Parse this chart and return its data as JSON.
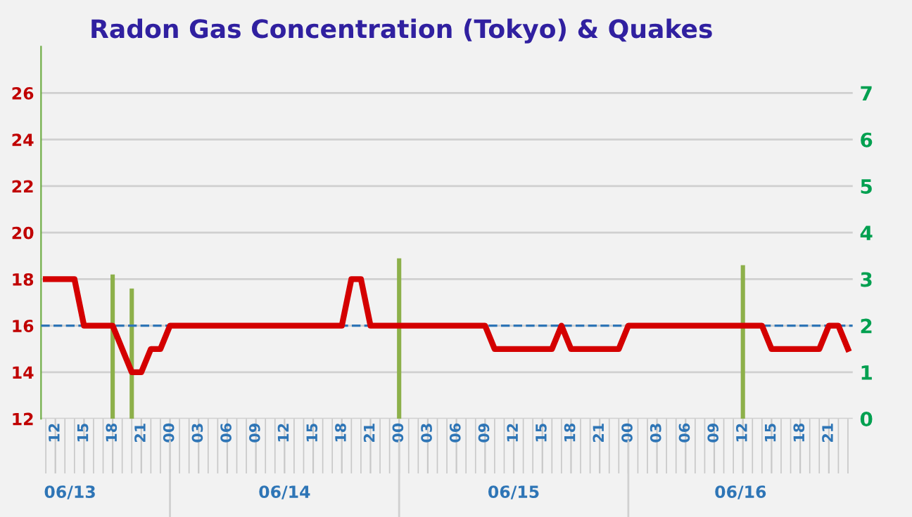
{
  "chart_data": {
    "type": "line",
    "title": "Radon Gas Concentration (Tokyo) & Quakes",
    "x": [
      11,
      12,
      13,
      14,
      15,
      16,
      17,
      18,
      19,
      20,
      21,
      22,
      23,
      24,
      25,
      26,
      27,
      28,
      29,
      30,
      31,
      32,
      33,
      34,
      35,
      36,
      37,
      38,
      39,
      40,
      41,
      42,
      43,
      44,
      45,
      46,
      47,
      48,
      49,
      50,
      51,
      52,
      53,
      54,
      55,
      56,
      57,
      58,
      59,
      60,
      61,
      62,
      63,
      64,
      65,
      66,
      67,
      68,
      69,
      70,
      71,
      72,
      73,
      74,
      75,
      76,
      77,
      78,
      79,
      80,
      81,
      82,
      83,
      84,
      85,
      86,
      87,
      88,
      89,
      90,
      91,
      92,
      93,
      94,
      95
    ],
    "series": [
      {
        "color": "#d40000",
        "values": [
          18,
          18,
          18,
          18,
          16,
          16,
          16,
          16,
          15,
          14,
          14,
          15,
          15,
          16,
          16,
          16,
          16,
          16,
          16,
          16,
          16,
          16,
          16,
          16,
          16,
          16,
          16,
          16,
          16,
          16,
          16,
          16,
          18,
          18,
          16,
          16,
          16,
          16,
          16,
          16,
          16,
          16,
          16,
          16,
          16,
          16,
          16,
          15,
          15,
          15,
          15,
          15,
          15,
          15,
          16,
          15,
          15,
          15,
          15,
          15,
          15,
          16,
          16,
          16,
          16,
          16,
          16,
          16,
          16,
          16,
          16,
          16,
          16,
          16,
          16,
          16,
          15,
          15,
          15,
          15,
          15,
          15,
          16,
          16,
          15
        ]
      },
      {
        "type": "bar",
        "axis": "y2",
        "color": "#8db04a",
        "values": [
          null,
          null,
          null,
          null,
          null,
          null,
          null,
          3.1,
          null,
          2.8,
          null,
          null,
          null,
          null,
          null,
          null,
          null,
          null,
          null,
          null,
          null,
          null,
          null,
          null,
          null,
          null,
          null,
          null,
          null,
          null,
          null,
          null,
          null,
          null,
          null,
          null,
          null,
          3.45,
          null,
          null,
          null,
          null,
          null,
          null,
          null,
          null,
          null,
          null,
          null,
          null,
          null,
          null,
          null,
          null,
          null,
          null,
          null,
          null,
          null,
          null,
          null,
          null,
          null,
          null,
          null,
          null,
          null,
          null,
          null,
          null,
          null,
          null,
          null,
          3.3,
          null,
          null,
          null,
          null,
          null,
          null,
          null,
          null,
          null,
          null,
          null
        ]
      }
    ],
    "xlim": [
      10.5,
      95.5
    ],
    "xticks": [
      {
        "value": 12,
        "label": "12"
      },
      {
        "value": 15,
        "label": "15"
      },
      {
        "value": 18,
        "label": "18"
      },
      {
        "value": 21,
        "label": "21"
      },
      {
        "value": 24,
        "label": "00"
      },
      {
        "value": 27,
        "label": "03"
      },
      {
        "value": 30,
        "label": "06"
      },
      {
        "value": 33,
        "label": "09"
      },
      {
        "value": 36,
        "label": "12"
      },
      {
        "value": 39,
        "label": "15"
      },
      {
        "value": 42,
        "label": "18"
      },
      {
        "value": 45,
        "label": "21"
      },
      {
        "value": 48,
        "label": "00"
      },
      {
        "value": 51,
        "label": "03"
      },
      {
        "value": 54,
        "label": "06"
      },
      {
        "value": 57,
        "label": "09"
      },
      {
        "value": 60,
        "label": "12"
      },
      {
        "value": 63,
        "label": "15"
      },
      {
        "value": 66,
        "label": "18"
      },
      {
        "value": 69,
        "label": "21"
      },
      {
        "value": 72,
        "label": "00"
      },
      {
        "value": 75,
        "label": "03"
      },
      {
        "value": 78,
        "label": "06"
      },
      {
        "value": 81,
        "label": "09"
      },
      {
        "value": 84,
        "label": "12"
      },
      {
        "value": 87,
        "label": "15"
      },
      {
        "value": 90,
        "label": "18"
      },
      {
        "value": 93,
        "label": "21"
      }
    ],
    "ylim": [
      12,
      28
    ],
    "yticks": [
      12,
      14,
      16,
      18,
      20,
      22,
      24,
      26
    ],
    "y2lim": [
      0,
      8
    ],
    "y2ticks": [
      0,
      1,
      2,
      3,
      4,
      5,
      6,
      7
    ],
    "grid": "y",
    "ref_lines": [
      {
        "axis": "y",
        "value": 16,
        "color": "#2e75b6",
        "line_style": "dashed"
      }
    ],
    "annotations": [
      "06/13",
      "06/14",
      "06/15",
      "06/16"
    ]
  }
}
